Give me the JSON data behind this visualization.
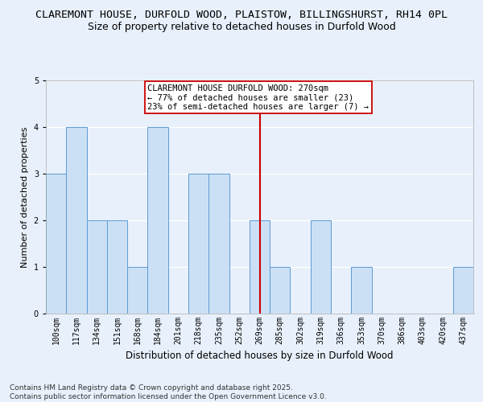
{
  "title1": "CLAREMONT HOUSE, DURFOLD WOOD, PLAISTOW, BILLINGSHURST, RH14 0PL",
  "title2": "Size of property relative to detached houses in Durfold Wood",
  "xlabel": "Distribution of detached houses by size in Durfold Wood",
  "ylabel": "Number of detached properties",
  "footer": "Contains HM Land Registry data © Crown copyright and database right 2025.\nContains public sector information licensed under the Open Government Licence v3.0.",
  "categories": [
    "100sqm",
    "117sqm",
    "134sqm",
    "151sqm",
    "168sqm",
    "184sqm",
    "201sqm",
    "218sqm",
    "235sqm",
    "252sqm",
    "269sqm",
    "285sqm",
    "302sqm",
    "319sqm",
    "336sqm",
    "353sqm",
    "370sqm",
    "386sqm",
    "403sqm",
    "420sqm",
    "437sqm"
  ],
  "values": [
    3,
    4,
    2,
    2,
    1,
    4,
    0,
    3,
    3,
    0,
    2,
    1,
    0,
    2,
    0,
    1,
    0,
    0,
    0,
    0,
    1
  ],
  "bar_color": "#cce0f5",
  "bar_edge_color": "#5b9bd5",
  "highlight_index": 10,
  "highlight_color": "#cc0000",
  "annotation_text": "CLAREMONT HOUSE DURFOLD WOOD: 270sqm\n← 77% of detached houses are smaller (23)\n23% of semi-detached houses are larger (7) →",
  "annotation_box_color": "#ffffff",
  "annotation_box_edge": "#cc0000",
  "ylim": [
    0,
    5
  ],
  "yticks": [
    0,
    1,
    2,
    3,
    4,
    5
  ],
  "background_color": "#e8f0fb",
  "plot_bg_color": "#e8f0fb",
  "grid_color": "#ffffff",
  "title1_fontsize": 9.5,
  "title2_fontsize": 9,
  "xlabel_fontsize": 8.5,
  "ylabel_fontsize": 8,
  "tick_fontsize": 7,
  "footer_fontsize": 6.5,
  "ann_fontsize": 7.5
}
